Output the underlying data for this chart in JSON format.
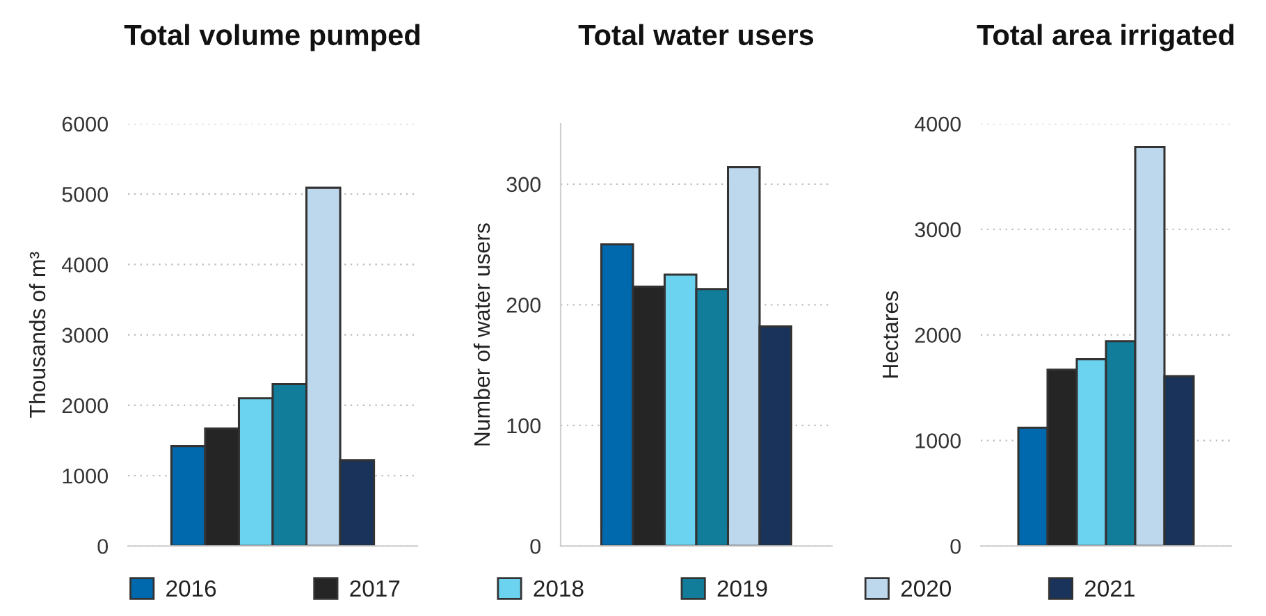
{
  "chart_data": [
    {
      "type": "bar",
      "title": "Total volume pumped",
      "ylabel": "Thousands of m³",
      "categories": [
        null
      ],
      "series": [
        {
          "name": "2016",
          "color": "#0068ad",
          "values": [
            1420
          ]
        },
        {
          "name": "2017",
          "color": "#252525",
          "values": [
            1670
          ]
        },
        {
          "name": "2018",
          "color": "#6bd3ef",
          "values": [
            2100
          ]
        },
        {
          "name": "2019",
          "color": "#117d9a",
          "values": [
            2300
          ]
        },
        {
          "name": "2020",
          "color": "#bdd7ec",
          "values": [
            5090
          ]
        },
        {
          "name": "2021",
          "color": "#19335a",
          "values": [
            1220
          ]
        }
      ],
      "ylim": [
        0,
        6000
      ],
      "yticks": [
        0,
        1000,
        2000,
        3000,
        4000,
        5000,
        6000
      ],
      "grid": "y",
      "legend": "bottom"
    },
    {
      "type": "bar",
      "title": "Total water users",
      "ylabel": "Number of water users",
      "categories": [
        null
      ],
      "series": [
        {
          "name": "2016",
          "color": "#0068ad",
          "values": [
            250
          ]
        },
        {
          "name": "2017",
          "color": "#252525",
          "values": [
            215
          ]
        },
        {
          "name": "2018",
          "color": "#6bd3ef",
          "values": [
            225
          ]
        },
        {
          "name": "2019",
          "color": "#117d9a",
          "values": [
            213
          ]
        },
        {
          "name": "2020",
          "color": "#bdd7ec",
          "values": [
            314
          ]
        },
        {
          "name": "2021",
          "color": "#19335a",
          "values": [
            182
          ]
        }
      ],
      "ylim": [
        0,
        350
      ],
      "yticks": [
        0,
        100,
        200,
        300
      ],
      "grid": "y",
      "legend": "bottom"
    },
    {
      "type": "bar",
      "title": "Total area irrigated",
      "ylabel": "Hectares",
      "categories": [
        null
      ],
      "series": [
        {
          "name": "2016",
          "color": "#0068ad",
          "values": [
            1120
          ]
        },
        {
          "name": "2017",
          "color": "#252525",
          "values": [
            1670
          ]
        },
        {
          "name": "2018",
          "color": "#6bd3ef",
          "values": [
            1770
          ]
        },
        {
          "name": "2019",
          "color": "#117d9a",
          "values": [
            1940
          ]
        },
        {
          "name": "2020",
          "color": "#bdd7ec",
          "values": [
            3780
          ]
        },
        {
          "name": "2021",
          "color": "#19335a",
          "values": [
            1610
          ]
        }
      ],
      "ylim": [
        0,
        4000
      ],
      "yticks": [
        0,
        1000,
        2000,
        3000,
        4000
      ],
      "grid": "y",
      "legend": "bottom"
    }
  ]
}
